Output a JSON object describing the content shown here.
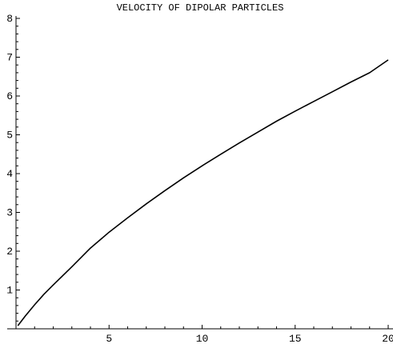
{
  "chart_data": {
    "type": "line",
    "title": "VELOCITY OF DIPOLAR PARTICLES",
    "xlabel": "",
    "ylabel": "",
    "xlim": [
      0,
      20
    ],
    "ylim": [
      0,
      8
    ],
    "x_ticks": [
      5,
      10,
      15,
      20
    ],
    "x_tick_labels": [
      "5",
      "10",
      "15",
      "20"
    ],
    "y_ticks": [
      1,
      2,
      3,
      4,
      5,
      6,
      7,
      8
    ],
    "y_tick_labels": [
      "1",
      "2",
      "3",
      "4",
      "5",
      "6",
      "7",
      "8"
    ],
    "grid": false,
    "series": [
      {
        "color": "#000000",
        "x": [
          0.1,
          0.5,
          1,
          1.5,
          2,
          3,
          4,
          5,
          6,
          7,
          8,
          9,
          10,
          11,
          12,
          13,
          14,
          15,
          16,
          17,
          18,
          19,
          20
        ],
        "y": [
          0.08,
          0.33,
          0.62,
          0.89,
          1.13,
          1.6,
          2.08,
          2.49,
          2.86,
          3.22,
          3.56,
          3.89,
          4.2,
          4.5,
          4.79,
          5.07,
          5.35,
          5.61,
          5.86,
          6.11,
          6.36,
          6.6,
          6.93
        ]
      }
    ]
  }
}
